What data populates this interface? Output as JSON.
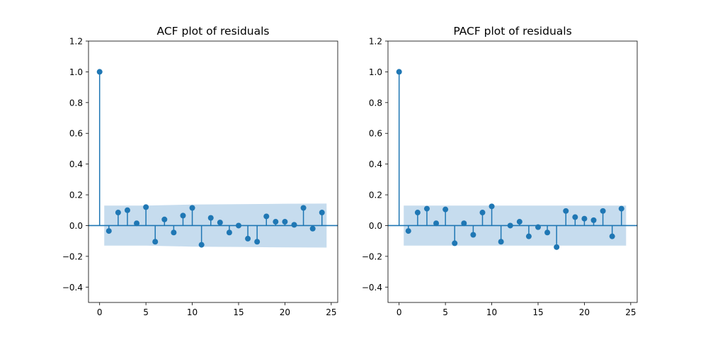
{
  "chart_data": [
    {
      "type": "stem",
      "title": "ACF plot of residuals",
      "xlabel": "",
      "ylabel": "",
      "xlim": [
        -1.2,
        25.7
      ],
      "ylim": [
        -0.5,
        1.2
      ],
      "xticks": [
        0,
        5,
        10,
        15,
        20,
        25
      ],
      "yticks": [
        -0.4,
        -0.2,
        0.0,
        0.2,
        0.4,
        0.6,
        0.8,
        1.0,
        1.2
      ],
      "ytick_labels": [
        "−0.4",
        "−0.2",
        "0.0",
        "0.2",
        "0.4",
        "0.6",
        "0.8",
        "1.0",
        "1.2"
      ],
      "grid": false,
      "lags": [
        0,
        1,
        2,
        3,
        4,
        5,
        6,
        7,
        8,
        9,
        10,
        11,
        12,
        13,
        14,
        15,
        16,
        17,
        18,
        19,
        20,
        21,
        22,
        23,
        24
      ],
      "values": [
        1.0,
        -0.035,
        0.085,
        0.1,
        0.015,
        0.12,
        -0.105,
        0.04,
        -0.045,
        0.065,
        0.115,
        -0.125,
        0.05,
        0.02,
        -0.045,
        0.0,
        -0.085,
        -0.105,
        0.06,
        0.025,
        0.025,
        0.005,
        0.115,
        -0.02,
        0.085
      ],
      "confidence_band": {
        "lags": [
          0.5,
          5,
          10,
          15,
          20,
          24.5
        ],
        "upper": [
          0.13,
          0.13,
          0.137,
          0.139,
          0.142,
          0.143
        ],
        "lower": [
          -0.13,
          -0.13,
          -0.137,
          -0.139,
          -0.142,
          -0.143
        ]
      },
      "color": "#1f77b4",
      "band_color": "#c6dcee"
    },
    {
      "type": "stem",
      "title": "PACF plot of residuals",
      "xlabel": "",
      "ylabel": "",
      "xlim": [
        -1.2,
        25.7
      ],
      "ylim": [
        -0.5,
        1.2
      ],
      "xticks": [
        0,
        5,
        10,
        15,
        20,
        25
      ],
      "yticks": [
        -0.4,
        -0.2,
        0.0,
        0.2,
        0.4,
        0.6,
        0.8,
        1.0,
        1.2
      ],
      "ytick_labels": [
        "−0.4",
        "−0.2",
        "0.0",
        "0.2",
        "0.4",
        "0.6",
        "0.8",
        "1.0",
        "1.2"
      ],
      "grid": false,
      "lags": [
        0,
        1,
        2,
        3,
        4,
        5,
        6,
        7,
        8,
        9,
        10,
        11,
        12,
        13,
        14,
        15,
        16,
        17,
        18,
        19,
        20,
        21,
        22,
        23,
        24
      ],
      "values": [
        1.0,
        -0.035,
        0.085,
        0.11,
        0.015,
        0.105,
        -0.115,
        0.015,
        -0.06,
        0.085,
        0.125,
        -0.105,
        0.0,
        0.025,
        -0.07,
        -0.01,
        -0.045,
        -0.14,
        0.095,
        0.055,
        0.045,
        0.035,
        0.095,
        -0.07,
        0.11
      ],
      "confidence_band": {
        "lags": [
          0.5,
          24.5
        ],
        "upper": [
          0.13,
          0.13
        ],
        "lower": [
          -0.13,
          -0.13
        ]
      },
      "color": "#1f77b4",
      "band_color": "#c6dcee"
    }
  ]
}
